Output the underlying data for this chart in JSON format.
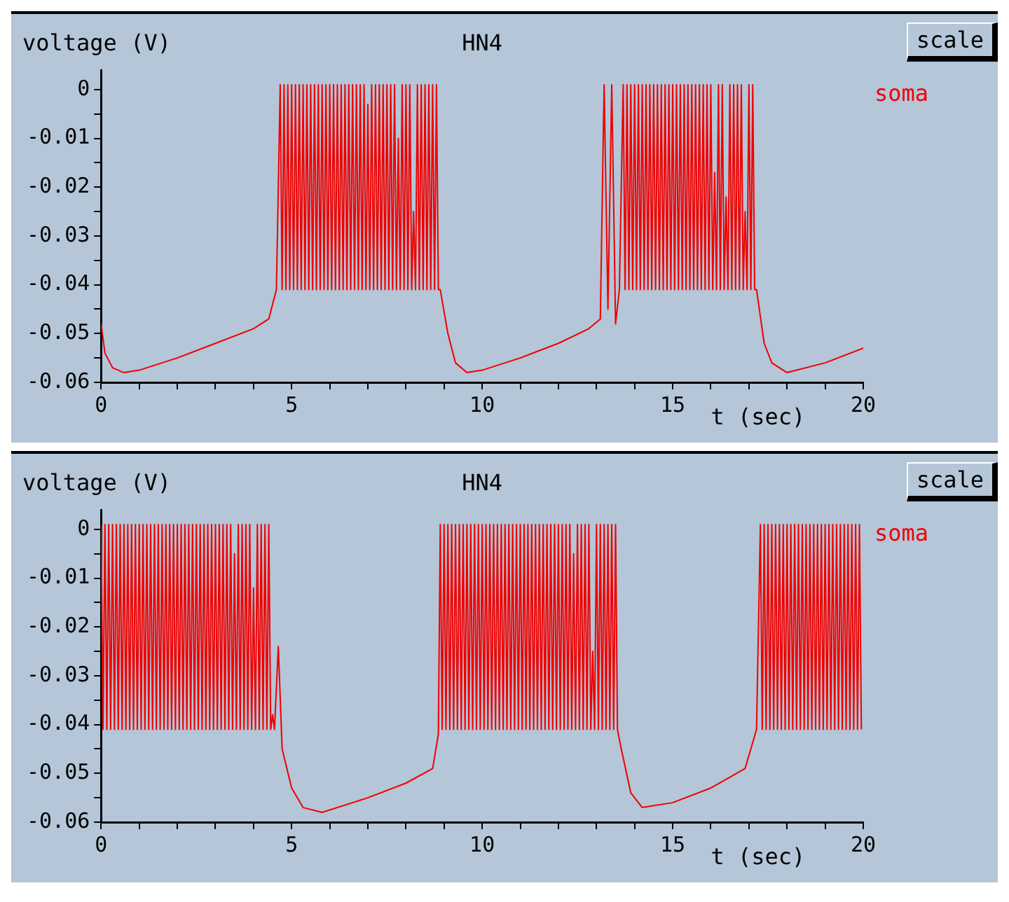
{
  "chart_data": [
    {
      "type": "line",
      "title": "HN4",
      "xlabel": "t (sec)",
      "ylabel": "voltage (V)",
      "annotations": [
        "scale"
      ],
      "legend": "top right",
      "grid": false,
      "marker": "none",
      "line_style": "solid",
      "xlim": [
        0,
        20
      ],
      "ylim": [
        -0.06,
        0.004
      ],
      "xticks": [
        0,
        {
          "value": 1,
          "label": null
        },
        {
          "value": 2,
          "label": null
        },
        {
          "value": 3,
          "label": null
        },
        {
          "value": 4,
          "label": null
        },
        5,
        {
          "value": 6,
          "label": null
        },
        {
          "value": 7,
          "label": null
        },
        {
          "value": 8,
          "label": null
        },
        {
          "value": 9,
          "label": null
        },
        10,
        {
          "value": 11,
          "label": null
        },
        {
          "value": 12,
          "label": null
        },
        {
          "value": 13,
          "label": null
        },
        {
          "value": 14,
          "label": null
        },
        15,
        {
          "value": 16,
          "label": null
        },
        {
          "value": 17,
          "label": null
        },
        {
          "value": 18,
          "label": null
        },
        {
          "value": 19,
          "label": null
        },
        20
      ],
      "yticks": [
        -0.06,
        {
          "value": -0.055,
          "label": null
        },
        -0.05,
        {
          "value": -0.045,
          "label": null
        },
        -0.04,
        {
          "value": -0.035,
          "label": null
        },
        -0.03,
        {
          "value": -0.025,
          "label": null
        },
        -0.02,
        {
          "value": -0.015,
          "label": null
        },
        -0.01,
        {
          "value": -0.005,
          "label": null
        },
        0
      ],
      "series": [
        {
          "name": "soma",
          "color": "#f00000",
          "x": [
            0,
            0.1,
            0.3,
            0.6,
            1,
            2,
            3,
            4,
            4.4,
            4.6,
            4.7,
            4.75,
            4.8,
            4.85,
            4.9,
            4.95,
            5,
            5.05,
            5.1,
            5.15,
            5.2,
            5.25,
            5.3,
            5.35,
            5.4,
            5.45,
            5.5,
            5.55,
            5.6,
            5.65,
            5.7,
            5.75,
            5.8,
            5.85,
            5.9,
            5.95,
            6,
            6.05,
            6.1,
            6.15,
            6.2,
            6.25,
            6.3,
            6.35,
            6.4,
            6.45,
            6.5,
            6.55,
            6.6,
            6.65,
            6.7,
            6.75,
            6.8,
            6.85,
            6.9,
            6.95,
            7,
            7.05,
            7.1,
            7.15,
            7.2,
            7.25,
            7.3,
            7.35,
            7.4,
            7.45,
            7.5,
            7.55,
            7.6,
            7.65,
            7.7,
            7.75,
            7.8,
            7.85,
            7.9,
            7.95,
            8,
            8.05,
            8.1,
            8.15,
            8.2,
            8.25,
            8.3,
            8.35,
            8.4,
            8.45,
            8.5,
            8.55,
            8.6,
            8.65,
            8.7,
            8.75,
            8.8,
            8.85,
            8.9,
            9.1,
            9.3,
            9.6,
            10,
            11,
            12,
            12.8,
            13.1,
            13.2,
            13.3,
            13.4,
            13.5,
            13.6,
            13.7,
            13.75,
            13.8,
            13.85,
            13.9,
            13.95,
            14,
            14.05,
            14.1,
            14.15,
            14.2,
            14.25,
            14.3,
            14.35,
            14.4,
            14.45,
            14.5,
            14.55,
            14.6,
            14.65,
            14.7,
            14.75,
            14.8,
            14.85,
            14.9,
            14.95,
            15,
            15.05,
            15.1,
            15.15,
            15.2,
            15.25,
            15.3,
            15.35,
            15.4,
            15.45,
            15.5,
            15.55,
            15.6,
            15.65,
            15.7,
            15.75,
            15.8,
            15.85,
            15.9,
            15.95,
            16,
            16.05,
            16.1,
            16.15,
            16.2,
            16.25,
            16.3,
            16.35,
            16.4,
            16.45,
            16.5,
            16.55,
            16.6,
            16.65,
            16.7,
            16.75,
            16.8,
            16.85,
            16.9,
            16.95,
            17,
            17.05,
            17.1,
            17.15,
            17.2,
            17.4,
            17.6,
            18,
            19,
            20
          ],
          "values": [
            -0.048,
            -0.054,
            -0.057,
            -0.058,
            -0.0575,
            -0.055,
            -0.052,
            -0.049,
            -0.047,
            -0.041,
            0.001,
            -0.041,
            0.001,
            -0.041,
            0.001,
            -0.041,
            0.001,
            -0.041,
            0.001,
            -0.041,
            0.001,
            -0.041,
            0.001,
            -0.041,
            0.001,
            -0.041,
            0.001,
            -0.041,
            0.001,
            -0.041,
            0.001,
            -0.041,
            0.001,
            -0.041,
            0.001,
            -0.041,
            0.001,
            -0.041,
            0.001,
            -0.041,
            0.001,
            -0.041,
            0.001,
            -0.041,
            0.001,
            -0.041,
            0.001,
            -0.041,
            0.001,
            -0.041,
            0.001,
            -0.041,
            0.001,
            -0.041,
            0.001,
            -0.041,
            -0.003,
            -0.041,
            0.001,
            -0.041,
            0.001,
            -0.041,
            0.001,
            -0.041,
            0.001,
            -0.041,
            0.001,
            -0.041,
            0.001,
            -0.041,
            0.001,
            -0.041,
            -0.01,
            -0.041,
            0.001,
            -0.041,
            0.001,
            -0.041,
            0.001,
            -0.041,
            -0.025,
            -0.041,
            0.001,
            -0.041,
            0.001,
            -0.041,
            0.001,
            -0.041,
            0.001,
            -0.041,
            0.001,
            -0.041,
            0.001,
            -0.041,
            -0.041,
            -0.05,
            -0.056,
            -0.058,
            -0.0575,
            -0.055,
            -0.052,
            -0.049,
            -0.047,
            0.001,
            -0.045,
            0.001,
            -0.048,
            -0.041,
            0.001,
            -0.041,
            0.001,
            -0.041,
            0.001,
            -0.041,
            0.001,
            -0.041,
            0.001,
            -0.041,
            0.001,
            -0.041,
            0.001,
            -0.041,
            0.001,
            -0.041,
            0.001,
            -0.041,
            0.001,
            -0.041,
            0.001,
            -0.041,
            0.001,
            -0.041,
            0.001,
            -0.041,
            0.001,
            -0.041,
            0.001,
            -0.041,
            0.001,
            -0.041,
            0.001,
            -0.041,
            0.001,
            -0.041,
            0.001,
            -0.041,
            0.001,
            -0.041,
            0.001,
            -0.041,
            0.001,
            -0.041,
            0.001,
            -0.041,
            0.001,
            -0.041,
            -0.017,
            -0.041,
            0.001,
            -0.041,
            0.001,
            -0.041,
            -0.022,
            -0.041,
            0.001,
            -0.041,
            0.001,
            -0.041,
            0.001,
            -0.041,
            0.001,
            -0.041,
            -0.025,
            -0.041,
            0.001,
            -0.041,
            0.001,
            -0.041,
            -0.041,
            -0.052,
            -0.056,
            -0.058,
            -0.056,
            -0.053
          ]
        }
      ]
    },
    {
      "type": "line",
      "title": "HN4",
      "xlabel": "t (sec)",
      "ylabel": "voltage (V)",
      "annotations": [
        "scale"
      ],
      "legend": "top right",
      "grid": false,
      "marker": "none",
      "line_style": "solid",
      "xlim": [
        0,
        20
      ],
      "ylim": [
        -0.06,
        0.004
      ],
      "xticks": [
        0,
        {
          "value": 1,
          "label": null
        },
        {
          "value": 2,
          "label": null
        },
        {
          "value": 3,
          "label": null
        },
        {
          "value": 4,
          "label": null
        },
        5,
        {
          "value": 6,
          "label": null
        },
        {
          "value": 7,
          "label": null
        },
        {
          "value": 8,
          "label": null
        },
        {
          "value": 9,
          "label": null
        },
        10,
        {
          "value": 11,
          "label": null
        },
        {
          "value": 12,
          "label": null
        },
        {
          "value": 13,
          "label": null
        },
        {
          "value": 14,
          "label": null
        },
        15,
        {
          "value": 16,
          "label": null
        },
        {
          "value": 17,
          "label": null
        },
        {
          "value": 18,
          "label": null
        },
        {
          "value": 19,
          "label": null
        },
        20
      ],
      "yticks": [
        -0.06,
        {
          "value": -0.055,
          "label": null
        },
        -0.05,
        {
          "value": -0.045,
          "label": null
        },
        -0.04,
        {
          "value": -0.035,
          "label": null
        },
        -0.03,
        {
          "value": -0.025,
          "label": null
        },
        -0.02,
        {
          "value": -0.015,
          "label": null
        },
        -0.01,
        {
          "value": -0.005,
          "label": null
        },
        0
      ],
      "series": [
        {
          "name": "soma",
          "color": "#f00000",
          "x": [
            0,
            0.05,
            0.1,
            0.15,
            0.2,
            0.25,
            0.3,
            0.35,
            0.4,
            0.45,
            0.5,
            0.55,
            0.6,
            0.65,
            0.7,
            0.75,
            0.8,
            0.85,
            0.9,
            0.95,
            1,
            1.05,
            1.1,
            1.15,
            1.2,
            1.25,
            1.3,
            1.35,
            1.4,
            1.45,
            1.5,
            1.55,
            1.6,
            1.65,
            1.7,
            1.75,
            1.8,
            1.85,
            1.9,
            1.95,
            2,
            2.05,
            2.1,
            2.15,
            2.2,
            2.25,
            2.3,
            2.35,
            2.4,
            2.45,
            2.5,
            2.55,
            2.6,
            2.65,
            2.7,
            2.75,
            2.8,
            2.85,
            2.9,
            2.95,
            3,
            3.05,
            3.1,
            3.15,
            3.2,
            3.25,
            3.3,
            3.35,
            3.4,
            3.45,
            3.5,
            3.55,
            3.6,
            3.65,
            3.7,
            3.75,
            3.8,
            3.85,
            3.9,
            3.95,
            4,
            4.05,
            4.1,
            4.15,
            4.2,
            4.25,
            4.3,
            4.35,
            4.4,
            4.45,
            4.5,
            4.55,
            4.65,
            4.75,
            5,
            5.3,
            5.8,
            7,
            8,
            8.7,
            8.85,
            8.9,
            8.95,
            9,
            9.05,
            9.1,
            9.15,
            9.2,
            9.25,
            9.3,
            9.35,
            9.4,
            9.45,
            9.5,
            9.55,
            9.6,
            9.65,
            9.7,
            9.75,
            9.8,
            9.85,
            9.9,
            9.95,
            10,
            10.05,
            10.1,
            10.15,
            10.2,
            10.25,
            10.3,
            10.35,
            10.4,
            10.45,
            10.5,
            10.55,
            10.6,
            10.65,
            10.7,
            10.75,
            10.8,
            10.85,
            10.9,
            10.95,
            11,
            11.05,
            11.1,
            11.15,
            11.2,
            11.25,
            11.3,
            11.35,
            11.4,
            11.45,
            11.5,
            11.55,
            11.6,
            11.65,
            11.7,
            11.75,
            11.8,
            11.85,
            11.9,
            11.95,
            12,
            12.05,
            12.1,
            12.15,
            12.2,
            12.25,
            12.3,
            12.35,
            12.4,
            12.45,
            12.5,
            12.55,
            12.6,
            12.65,
            12.7,
            12.75,
            12.8,
            12.85,
            12.9,
            12.95,
            13,
            13.05,
            13.1,
            13.15,
            13.2,
            13.25,
            13.3,
            13.35,
            13.4,
            13.45,
            13.5,
            13.55,
            13.65,
            13.9,
            14.2,
            15,
            16,
            16.9,
            17.2,
            17.3,
            17.35,
            17.4,
            17.45,
            17.5,
            17.55,
            17.6,
            17.65,
            17.7,
            17.75,
            17.8,
            17.85,
            17.9,
            17.95,
            18,
            18.05,
            18.1,
            18.15,
            18.2,
            18.25,
            18.3,
            18.35,
            18.4,
            18.45,
            18.5,
            18.55,
            18.6,
            18.65,
            18.7,
            18.75,
            18.8,
            18.85,
            18.9,
            18.95,
            19,
            19.05,
            19.1,
            19.15,
            19.2,
            19.25,
            19.3,
            19.35,
            19.4,
            19.45,
            19.5,
            19.55,
            19.6,
            19.65,
            19.7,
            19.75,
            19.8,
            19.85,
            19.9,
            19.95
          ],
          "values": [
            0.001,
            -0.041,
            0.001,
            -0.041,
            0.001,
            -0.041,
            0.001,
            -0.041,
            0.001,
            -0.041,
            0.001,
            -0.041,
            0.001,
            -0.041,
            0.001,
            -0.041,
            0.001,
            -0.041,
            0.001,
            -0.041,
            0.001,
            -0.041,
            0.001,
            -0.041,
            0.001,
            -0.041,
            0.001,
            -0.041,
            0.001,
            -0.041,
            0.001,
            -0.041,
            0.001,
            -0.041,
            0.001,
            -0.041,
            0.001,
            -0.041,
            0.001,
            -0.041,
            0.001,
            -0.041,
            0.001,
            -0.041,
            0.001,
            -0.041,
            0.001,
            -0.041,
            0.001,
            -0.041,
            0.001,
            -0.041,
            0.001,
            -0.041,
            0.001,
            -0.041,
            0.001,
            -0.041,
            0.001,
            -0.041,
            0.001,
            -0.041,
            0.001,
            -0.041,
            0.001,
            -0.041,
            0.001,
            -0.041,
            0.001,
            -0.041,
            -0.005,
            -0.041,
            0.001,
            -0.041,
            0.001,
            -0.041,
            0.001,
            -0.041,
            0.001,
            -0.041,
            -0.012,
            -0.041,
            0.001,
            -0.041,
            0.001,
            -0.041,
            0.001,
            -0.041,
            0.001,
            -0.041,
            -0.038,
            -0.041,
            -0.024,
            -0.045,
            -0.053,
            -0.057,
            -0.058,
            -0.055,
            -0.052,
            -0.049,
            -0.042,
            0.001,
            -0.041,
            0.001,
            -0.041,
            0.001,
            -0.041,
            0.001,
            -0.041,
            0.001,
            -0.041,
            0.001,
            -0.041,
            0.001,
            -0.041,
            0.001,
            -0.041,
            0.001,
            -0.041,
            0.001,
            -0.041,
            0.001,
            -0.041,
            0.001,
            -0.041,
            0.001,
            -0.041,
            0.001,
            -0.041,
            0.001,
            -0.041,
            0.001,
            -0.041,
            0.001,
            -0.041,
            0.001,
            -0.041,
            0.001,
            -0.041,
            0.001,
            -0.041,
            0.001,
            -0.041,
            0.001,
            -0.041,
            0.001,
            -0.041,
            0.001,
            -0.041,
            0.001,
            -0.041,
            0.001,
            -0.041,
            0.001,
            -0.041,
            0.001,
            -0.041,
            0.001,
            -0.041,
            0.001,
            -0.041,
            0.001,
            -0.041,
            0.001,
            -0.041,
            0.001,
            -0.041,
            0.001,
            -0.041,
            0.001,
            -0.041,
            -0.005,
            -0.041,
            0.001,
            -0.041,
            0.001,
            -0.041,
            0.001,
            -0.041,
            0.001,
            -0.041,
            -0.025,
            -0.041,
            0.001,
            -0.041,
            0.001,
            -0.041,
            0.001,
            -0.041,
            0.001,
            -0.041,
            0.001,
            -0.041,
            0.001,
            -0.041,
            -0.045,
            -0.054,
            -0.057,
            -0.056,
            -0.053,
            -0.049,
            -0.041,
            0.001,
            -0.041,
            0.001,
            -0.041,
            0.001,
            -0.041,
            0.001,
            -0.041,
            0.001,
            -0.041,
            0.001,
            -0.041,
            0.001,
            -0.041,
            0.001,
            -0.041,
            0.001,
            -0.041,
            0.001,
            -0.041,
            0.001,
            -0.041,
            0.001,
            -0.041,
            0.001,
            -0.041,
            0.001,
            -0.041,
            0.001,
            -0.041,
            0.001,
            -0.041,
            0.001,
            -0.041,
            0.001,
            -0.041,
            0.001,
            -0.041,
            0.001,
            -0.041,
            0.001,
            -0.041,
            0.001,
            -0.041,
            0.001,
            -0.041,
            0.001,
            -0.041,
            0.001,
            -0.041,
            0.001,
            -0.041,
            0.001,
            -0.041
          ]
        }
      ]
    }
  ]
}
